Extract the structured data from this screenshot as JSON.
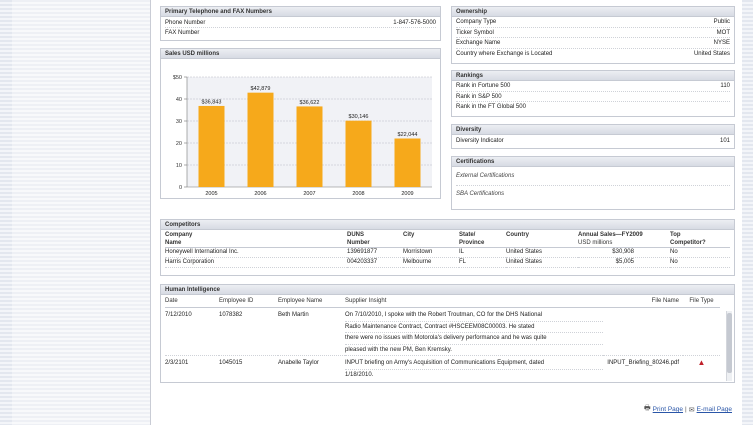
{
  "contact": {
    "title": "Primary Telephone and FAX Numbers",
    "rows": [
      {
        "label": "Phone Number",
        "value": "1-847-576-5000"
      },
      {
        "label": "FAX Number",
        "value": ""
      }
    ]
  },
  "sales": {
    "title": "Sales USD millions"
  },
  "chart_data": {
    "type": "bar",
    "categories": [
      "2005",
      "2006",
      "2007",
      "2008",
      "2009"
    ],
    "values": [
      36843,
      42879,
      36622,
      30146,
      22044
    ],
    "value_labels": [
      "$36,843",
      "$42,879",
      "$36,622",
      "$30,146",
      "$22,044"
    ],
    "yticks": [
      "$50",
      "40",
      "30",
      "20",
      "10",
      "0"
    ],
    "ylim": [
      0,
      50000
    ],
    "bar_color": "#f6a91b",
    "grid": true
  },
  "ownership": {
    "title": "Ownership",
    "rows": [
      {
        "label": "Company Type",
        "value": "Public"
      },
      {
        "label": "Ticker Symbol",
        "value": "MOT"
      },
      {
        "label": "Exchange Name",
        "value": "NYSE"
      },
      {
        "label": "Country where Exchange is Located",
        "value": "United States"
      }
    ]
  },
  "rankings": {
    "title": "Rankings",
    "rows": [
      {
        "label": "Rank in Fortune 500",
        "value": "110"
      },
      {
        "label": "Rank in S&P 500",
        "value": ""
      },
      {
        "label": "Rank in the FT Global 500",
        "value": ""
      }
    ]
  },
  "diversity": {
    "title": "Diversity",
    "rows": [
      {
        "label": "Diversity Indicator",
        "value": "101"
      }
    ]
  },
  "certifications": {
    "title": "Certifications",
    "external": "External Certifications",
    "sba": "SBA Certifications"
  },
  "competitors": {
    "title": "Competitors",
    "headers": {
      "company": [
        "Company",
        "Name"
      ],
      "duns": [
        "DUNS",
        "Number"
      ],
      "city": [
        "City",
        ""
      ],
      "state": [
        "State/",
        "Province"
      ],
      "country": [
        "Country",
        ""
      ],
      "sales": [
        "Annual Sales—FY2009",
        "USD millions"
      ],
      "top": [
        "Top",
        "Competitor?"
      ]
    },
    "rows": [
      {
        "company": "Honeywell International Inc.",
        "duns": "139691877",
        "city": "Morristown",
        "state": "IL",
        "country": "United States",
        "sales": "$30,908",
        "top": "No"
      },
      {
        "company": "Harris Corporation",
        "duns": "004203337",
        "city": "Melbourne",
        "state": "FL",
        "country": "United States",
        "sales": "$5,005",
        "top": "No"
      }
    ]
  },
  "human_intelligence": {
    "title": "Human Intelligence",
    "headers": {
      "date": "Date",
      "employee_id": "Employee ID",
      "employee_name": "Employee Name",
      "insight": "Supplier Insight",
      "file_name": "File Name",
      "file_type": "File Type"
    },
    "rows": [
      {
        "date": "7/12/2010",
        "employee_id": "1078382",
        "employee_name": "Beth Martin",
        "insight_lines": [
          "On 7/10/2010, I spoke with the Robert Troutman, CO for the DHS National",
          "Radio Maintenance Contract, Contract #HSCEEM08C00003. He stated",
          "there were no issues with Motorola's delivery performance and he was quite",
          "pleased with the new PM, Ben Kremsky."
        ],
        "file_name": "",
        "file_type": ""
      },
      {
        "date": "2/3/2101",
        "employee_id": "1045015",
        "employee_name": "Anabelle Taylor",
        "insight_lines": [
          "INPUT briefing on Army's Acquisition of Communications Equipment, dated",
          "1/18/2010."
        ],
        "file_name": "INPUT_Briefing_80246.pdf",
        "file_type": "pdf-icon"
      }
    ]
  },
  "footer": {
    "print": "Print Page",
    "separator": "|",
    "email": "E-mail Page"
  }
}
